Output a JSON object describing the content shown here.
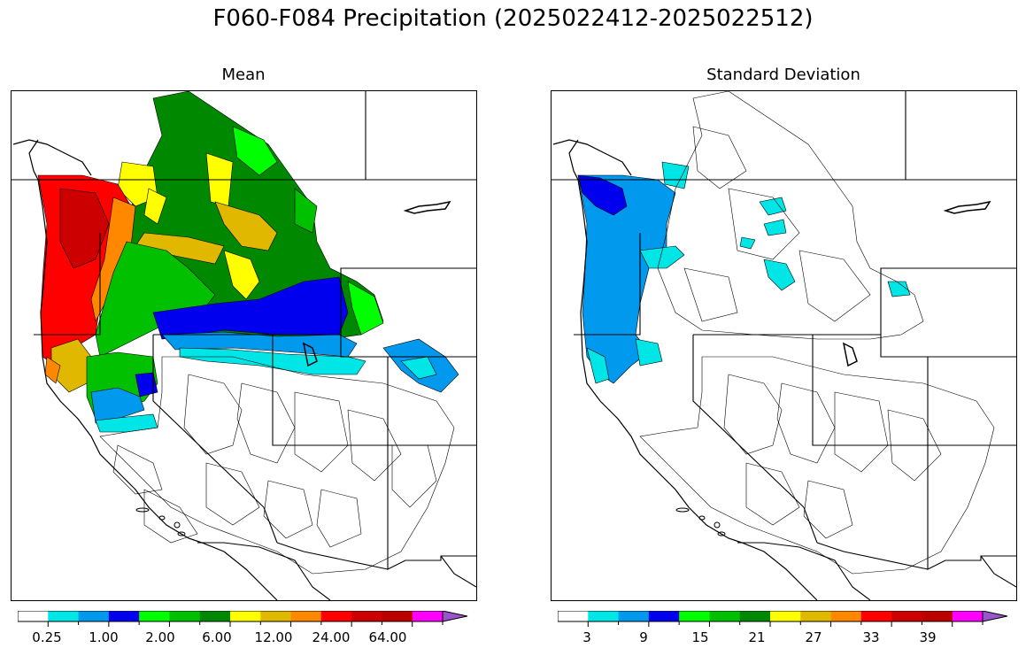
{
  "title": "F060-F084 Precipitation (2025022412-2025022512)",
  "panels": [
    {
      "title": "Mean",
      "colorbar": {
        "colors": [
          "#ffffff",
          "#00e5e5",
          "#0099ee",
          "#0000ee",
          "#00ff00",
          "#00c000",
          "#008800",
          "#ffff00",
          "#e0b800",
          "#ff8800",
          "#ff0000",
          "#cc0000",
          "#bb0000",
          "#ff00ff",
          "#9955cc"
        ],
        "tick_labels": [
          "0.25",
          "1.00",
          "2.00",
          "6.00",
          "12.00",
          "24.00",
          "64.00"
        ]
      }
    },
    {
      "title": "Standard Deviation",
      "colorbar": {
        "colors": [
          "#ffffff",
          "#00e5e5",
          "#0099ee",
          "#0000ee",
          "#00ff00",
          "#00c000",
          "#008800",
          "#ffff00",
          "#e0b800",
          "#ff8800",
          "#ff0000",
          "#cc0000",
          "#bb0000",
          "#ff00ff",
          "#9955cc"
        ],
        "tick_labels": [
          "3",
          "9",
          "15",
          "21",
          "27",
          "33",
          "39"
        ]
      }
    }
  ]
}
